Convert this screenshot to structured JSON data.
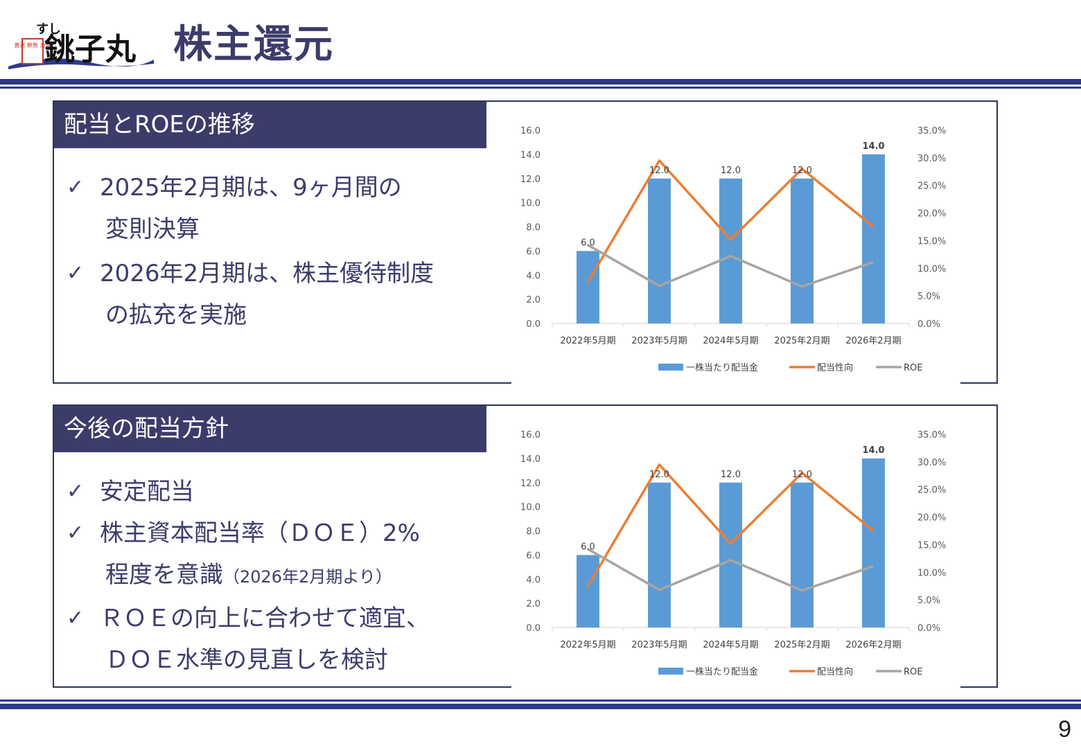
{
  "header": {
    "title": "株主還元",
    "logo": {
      "label": "銚子丸",
      "sub": "すし",
      "badge": "直送 鮮魚 漁港",
      "icon": "brand-logo"
    }
  },
  "page_number": "9",
  "colors": {
    "navy": "#3c3c6b",
    "bar": "#5b9bd5",
    "orange": "#ed7d31",
    "gray": "#a5a5a5",
    "rule": "#2b3a8c"
  },
  "panels": [
    {
      "heading": "配当とROEの推移",
      "bullets": [
        {
          "check": "✓",
          "lines": [
            "2025年2月期は、9ヶ月間の",
            "変則決算"
          ]
        },
        {
          "check": "✓",
          "lines": [
            "2026年2月期は、株主優待制度",
            "の拡充を実施"
          ]
        }
      ]
    },
    {
      "heading": "今後の配当方針",
      "bullets": [
        {
          "check": "✓",
          "lines": [
            "安定配当"
          ]
        },
        {
          "check": "✓",
          "lines": [
            "株主資本配当率（ＤＯＥ）2%",
            "程度を意識"
          ],
          "note": "（2026年2月期より）"
        },
        {
          "check": "✓",
          "lines": [
            "ＲＯＥの向上に合わせて適宜、",
            "ＤＯＥ水準の見直しを検討"
          ]
        }
      ]
    }
  ],
  "chart_data": [
    {
      "type": "bar",
      "categories": [
        "2022年5月期",
        "2023年5月期",
        "2024年5月期",
        "2025年2月期",
        "2026年2月期"
      ],
      "series": [
        {
          "name": "一株当たり配当金",
          "type": "bar",
          "axis": "left",
          "values": [
            6.0,
            12.0,
            12.0,
            12.0,
            14.0
          ],
          "labels": [
            "6.0",
            "12.0",
            "12.0",
            "12.0",
            "14.0"
          ]
        },
        {
          "name": "配当性向",
          "type": "line",
          "axis": "right",
          "values": [
            7.5,
            29.5,
            15.2,
            28.0,
            17.5
          ]
        },
        {
          "name": "ROE",
          "type": "line",
          "axis": "right",
          "values": [
            14.2,
            6.8,
            12.2,
            6.7,
            11.1
          ]
        }
      ],
      "y_left": {
        "min": 0,
        "max": 16,
        "ticks": [
          "0.0",
          "2.0",
          "4.0",
          "6.0",
          "8.0",
          "10.0",
          "12.0",
          "14.0",
          "16.0"
        ]
      },
      "y_right": {
        "min": 0,
        "max": 35,
        "ticks": [
          "0.0%",
          "5.0%",
          "10.0%",
          "15.0%",
          "20.0%",
          "25.0%",
          "30.0%",
          "35.0%"
        ]
      },
      "legend_position": "bottom",
      "grid": false
    },
    {
      "type": "bar",
      "categories": [
        "2022年5月期",
        "2023年5月期",
        "2024年5月期",
        "2025年2月期",
        "2026年2月期"
      ],
      "series": [
        {
          "name": "一株当たり配当金",
          "type": "bar",
          "axis": "left",
          "values": [
            6.0,
            12.0,
            12.0,
            12.0,
            14.0
          ],
          "labels": [
            "6.0",
            "12.0",
            "12.0",
            "12.0",
            "14.0"
          ]
        },
        {
          "name": "配当性向",
          "type": "line",
          "axis": "right",
          "values": [
            7.5,
            29.5,
            15.2,
            28.0,
            17.5
          ]
        },
        {
          "name": "ROE",
          "type": "line",
          "axis": "right",
          "values": [
            14.2,
            6.8,
            12.2,
            6.7,
            11.1
          ]
        }
      ],
      "y_left": {
        "min": 0,
        "max": 16,
        "ticks": [
          "0.0",
          "2.0",
          "4.0",
          "6.0",
          "8.0",
          "10.0",
          "12.0",
          "14.0",
          "16.0"
        ]
      },
      "y_right": {
        "min": 0,
        "max": 35,
        "ticks": [
          "0.0%",
          "5.0%",
          "10.0%",
          "15.0%",
          "20.0%",
          "25.0%",
          "30.0%",
          "35.0%"
        ]
      },
      "legend_position": "bottom",
      "grid": false
    }
  ]
}
